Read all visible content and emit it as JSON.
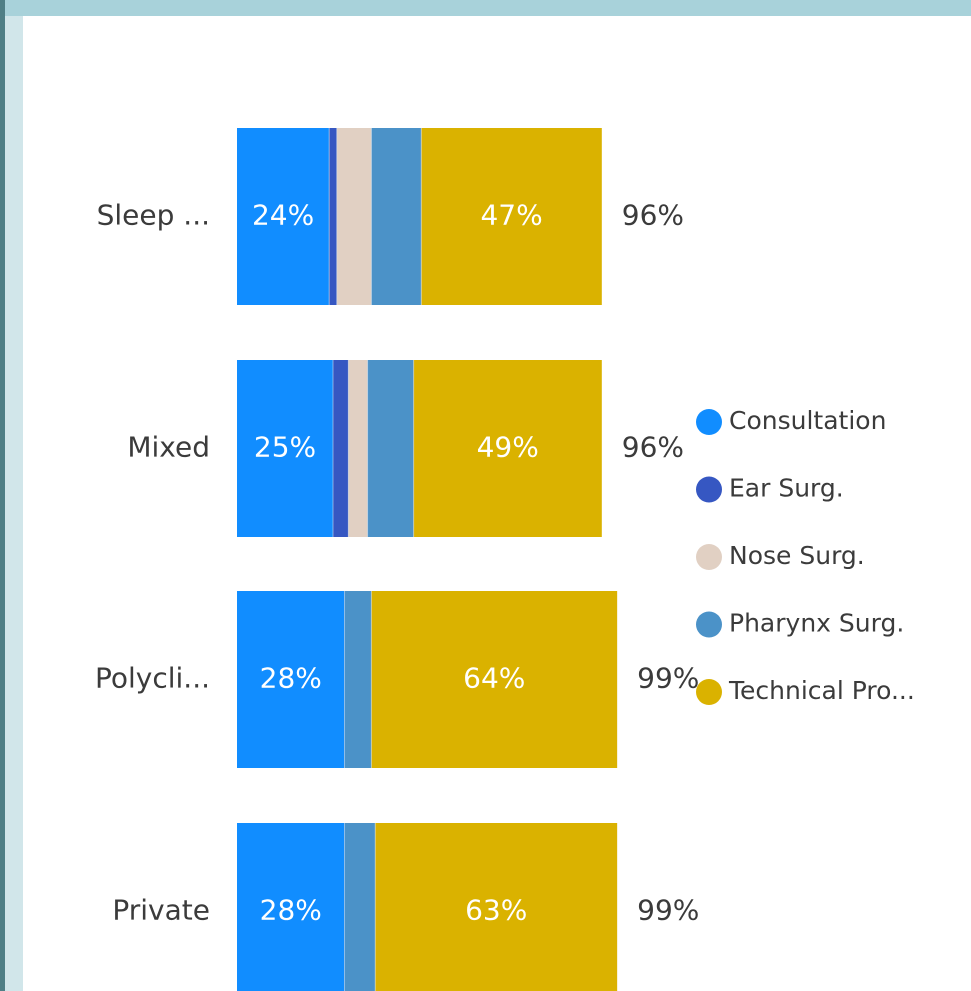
{
  "chart_data": {
    "type": "bar",
    "orientation": "horizontal",
    "stacked": true,
    "categories": [
      "Sleep ...",
      "Mixed",
      "Polycli...",
      "Private"
    ],
    "series": [
      {
        "name": "Consultation",
        "color": "#118dff",
        "values": [
          24,
          25,
          28,
          28
        ]
      },
      {
        "name": "Ear Surg.",
        "color": "#3657c2",
        "values": [
          2,
          4,
          0,
          0
        ]
      },
      {
        "name": "Nose Surg.",
        "color": "#e1d0c3",
        "values": [
          9,
          5,
          0,
          0
        ]
      },
      {
        "name": "Pharynx Surg.",
        "color": "#4b92c8",
        "values": [
          13,
          12,
          7,
          8
        ]
      },
      {
        "name": "Technical Pro...",
        "color": "#dab200",
        "values": [
          47,
          49,
          64,
          63
        ]
      }
    ],
    "segment_labels": [
      {
        "category": 0,
        "series": 0,
        "text": "24%"
      },
      {
        "category": 0,
        "series": 4,
        "text": "47%"
      },
      {
        "category": 1,
        "series": 0,
        "text": "25%"
      },
      {
        "category": 1,
        "series": 4,
        "text": "49%"
      },
      {
        "category": 2,
        "series": 0,
        "text": "28%"
      },
      {
        "category": 2,
        "series": 4,
        "text": "64%"
      },
      {
        "category": 3,
        "series": 0,
        "text": "28%"
      },
      {
        "category": 3,
        "series": 4,
        "text": "63%"
      }
    ],
    "totals": [
      "96%",
      "96%",
      "99%",
      "99%"
    ],
    "legend_position": "right",
    "grid": false
  }
}
